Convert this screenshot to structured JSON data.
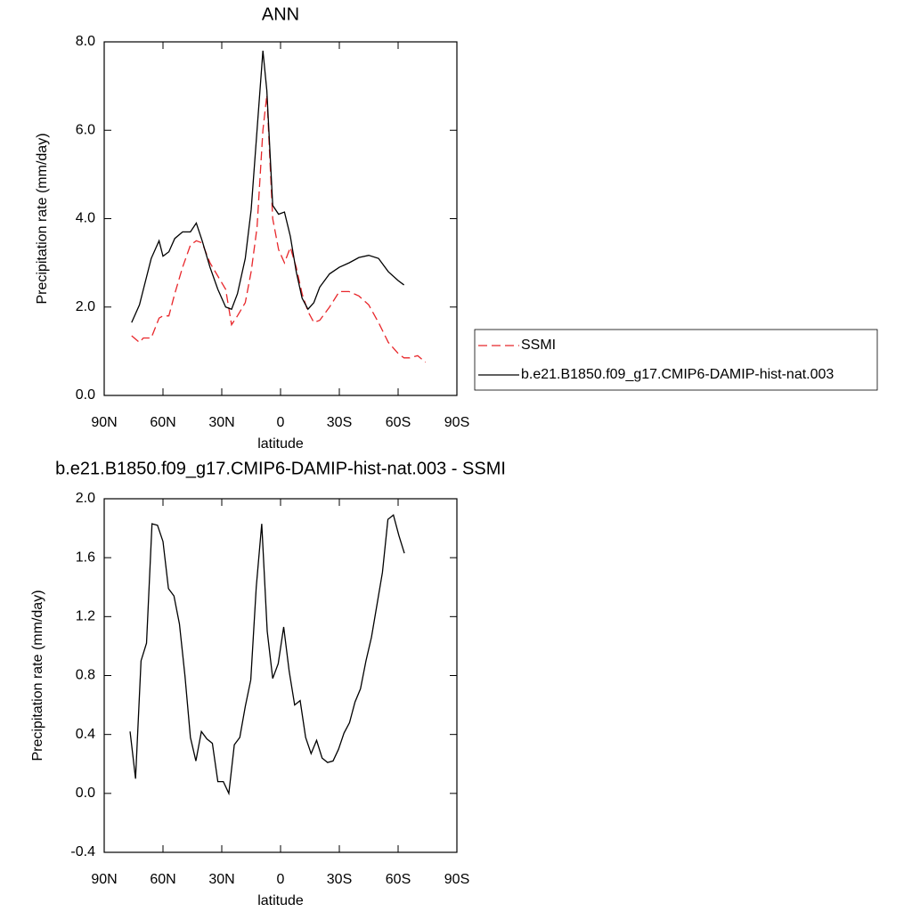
{
  "chart_data": [
    {
      "type": "line",
      "title": "ANN",
      "xlabel": "latitude",
      "ylabel": "Precipitation rate (mm/day)",
      "x": [
        76,
        72,
        70,
        66,
        62,
        60,
        57,
        54,
        50,
        46,
        43,
        40,
        36,
        32,
        28,
        25,
        22,
        18,
        15,
        12,
        9,
        7,
        4,
        1,
        -2,
        -5,
        -8,
        -11,
        -14,
        -17,
        -20,
        -25,
        -30,
        -35,
        -40,
        -45,
        -50,
        -55,
        -60,
        -63,
        -66,
        -70,
        -74
      ],
      "series": [
        {
          "name": "SSMI",
          "color": "#e8262a",
          "dash": "dashed",
          "values": [
            1.35,
            1.2,
            1.3,
            1.3,
            1.75,
            1.8,
            1.8,
            2.3,
            2.9,
            3.4,
            3.5,
            3.45,
            3.0,
            2.7,
            2.4,
            1.6,
            1.8,
            2.1,
            2.8,
            3.8,
            6.0,
            6.8,
            4.0,
            3.3,
            3.0,
            3.35,
            2.9,
            2.3,
            1.9,
            1.65,
            1.7,
            2.0,
            2.35,
            2.35,
            2.25,
            2.05,
            1.65,
            1.2,
            0.95,
            0.85,
            0.85,
            0.9,
            0.75
          ]
        },
        {
          "name": "b.e21.B1850.f09_g17.CMIP6-DAMIP-hist-nat.003",
          "color": "#000000",
          "dash": "solid",
          "values": [
            1.65,
            2.05,
            2.4,
            3.1,
            3.5,
            3.15,
            3.25,
            3.55,
            3.7,
            3.7,
            3.9,
            3.5,
            2.9,
            2.4,
            2.0,
            1.95,
            2.3,
            3.1,
            4.2,
            6.0,
            7.8,
            6.9,
            4.3,
            4.1,
            4.15,
            3.6,
            2.8,
            2.2,
            1.95,
            2.1,
            2.45,
            2.75,
            2.9,
            3.0,
            3.12,
            3.17,
            3.1,
            2.8,
            2.6,
            2.5,
            null,
            null,
            null
          ]
        }
      ],
      "xlim": [
        90,
        -90
      ],
      "xticks": [
        {
          "value": 90,
          "label": "90N"
        },
        {
          "value": 60,
          "label": "60N"
        },
        {
          "value": 30,
          "label": "30N"
        },
        0,
        {
          "value": -30,
          "label": "30S"
        },
        {
          "value": -60,
          "label": "60S"
        },
        {
          "value": -90,
          "label": "90S"
        }
      ],
      "ylim": [
        0,
        8
      ],
      "yticks": [
        {
          "value": 0,
          "label": "0.0"
        },
        {
          "value": 2,
          "label": "2.0"
        },
        {
          "value": 4,
          "label": "4.0"
        },
        {
          "value": 6,
          "label": "6.0"
        },
        {
          "value": 8,
          "label": "8.0"
        }
      ],
      "grid": false
    },
    {
      "type": "line",
      "title": "b.e21.B1850.f09_g17.CMIP6-DAMIP-hist-nat.003 - SSMI",
      "xlabel": "latitude",
      "ylabel": "Precipitation rate (mm/day)",
      "x": [
        76.8,
        74.0,
        71.2,
        68.4,
        65.6,
        62.8,
        60.0,
        57.2,
        54.4,
        51.6,
        48.8,
        46.0,
        43.2,
        40.4,
        37.6,
        34.8,
        32.0,
        29.2,
        26.4,
        23.6,
        20.8,
        18.0,
        15.2,
        12.4,
        9.6,
        6.8,
        4.0,
        1.2,
        -1.6,
        -4.4,
        -7.2,
        -10.0,
        -12.8,
        -15.6,
        -18.4,
        -21.2,
        -24.0,
        -26.8,
        -29.6,
        -32.4,
        -35.2,
        -38.0,
        -40.8,
        -43.6,
        -46.4,
        -49.2,
        -52.0,
        -54.8,
        -57.6,
        -60.4,
        -63.2
      ],
      "values": [
        0.42,
        0.1,
        0.9,
        1.02,
        1.83,
        1.82,
        1.71,
        1.39,
        1.34,
        1.15,
        0.8,
        0.38,
        0.22,
        0.42,
        0.37,
        0.34,
        0.08,
        0.08,
        0.0,
        0.33,
        0.38,
        0.59,
        0.77,
        1.4,
        1.83,
        1.1,
        0.78,
        0.88,
        1.13,
        0.83,
        0.6,
        0.63,
        0.38,
        0.27,
        0.36,
        0.24,
        0.21,
        0.22,
        0.3,
        0.41,
        0.48,
        0.62,
        0.71,
        0.9,
        1.06,
        1.28,
        1.5,
        1.86,
        1.89,
        1.75,
        1.63
      ],
      "color": "#000000",
      "xlim": [
        90,
        -90
      ],
      "xticks": [
        {
          "value": 90,
          "label": "90N"
        },
        {
          "value": 60,
          "label": "60N"
        },
        {
          "value": 30,
          "label": "30N"
        },
        0,
        {
          "value": -30,
          "label": "30S"
        },
        {
          "value": -60,
          "label": "60S"
        },
        {
          "value": -90,
          "label": "90S"
        }
      ],
      "ylim": [
        -0.4,
        2.0
      ],
      "yticks": [
        {
          "value": -0.4,
          "label": "-0.4"
        },
        {
          "value": 0,
          "label": "0.0"
        },
        {
          "value": 0.4,
          "label": "0.4"
        },
        {
          "value": 0.8,
          "label": "0.8"
        },
        {
          "value": 1.2,
          "label": "1.2"
        },
        {
          "value": 1.6,
          "label": "1.6"
        },
        {
          "value": 2.0,
          "label": "2.0"
        }
      ],
      "grid": false
    }
  ]
}
